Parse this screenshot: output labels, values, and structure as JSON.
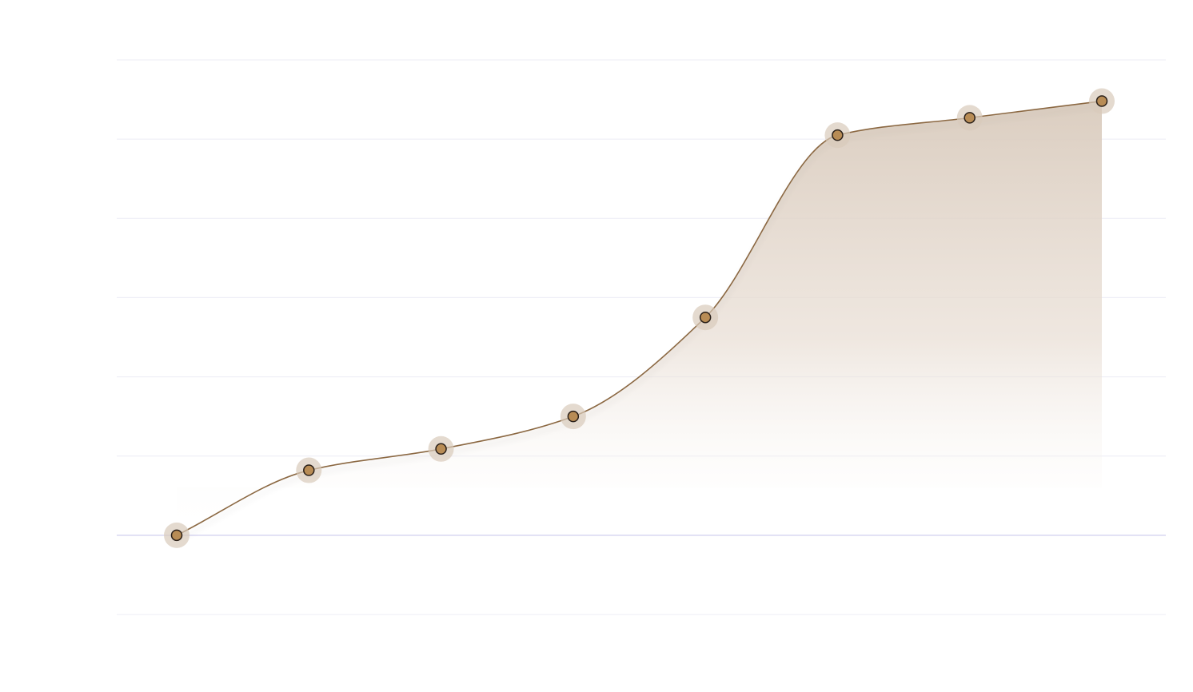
{
  "chart_data": {
    "type": "area",
    "title": "",
    "xlabel": "",
    "ylabel": "",
    "x": [
      1,
      2,
      3,
      4,
      5,
      6,
      7,
      8
    ],
    "series": [
      {
        "values": [
          0.0,
          0.82,
          1.09,
          1.5,
          2.75,
          5.05,
          5.27,
          5.48
        ]
      }
    ],
    "ylim": [
      -1,
      6
    ],
    "grid": true,
    "baseline_value": 0,
    "legend": "none",
    "colors": {
      "line": "#8b6843",
      "marker_fill": "#b88c55",
      "marker_stroke": "#2a2019",
      "marker_halo": "#d8cabb",
      "area_top": "#d9cbbd",
      "grid": "#ececf5",
      "baseline": "#d8d6f1"
    }
  }
}
